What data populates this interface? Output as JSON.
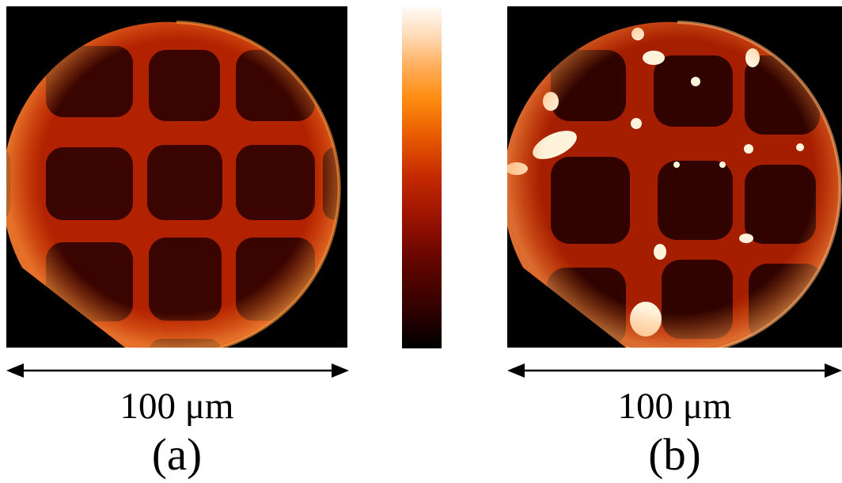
{
  "figure": {
    "panels": [
      {
        "id": "a",
        "label": "(a)",
        "scale_text": "100 μm"
      },
      {
        "id": "b",
        "label": "(b)",
        "scale_text": "100 μm"
      }
    ],
    "colorbar": {
      "colors": [
        "#fffcf8",
        "#ffd9b3",
        "#ffb060",
        "#ff8c10",
        "#e85a00",
        "#c42a00",
        "#9a1200",
        "#650600",
        "#3a0200",
        "#120000",
        "#000000"
      ]
    },
    "colors": {
      "background_black": "#000000",
      "grid_bright": "#c83200",
      "hotspot": "#fff3dc"
    }
  }
}
